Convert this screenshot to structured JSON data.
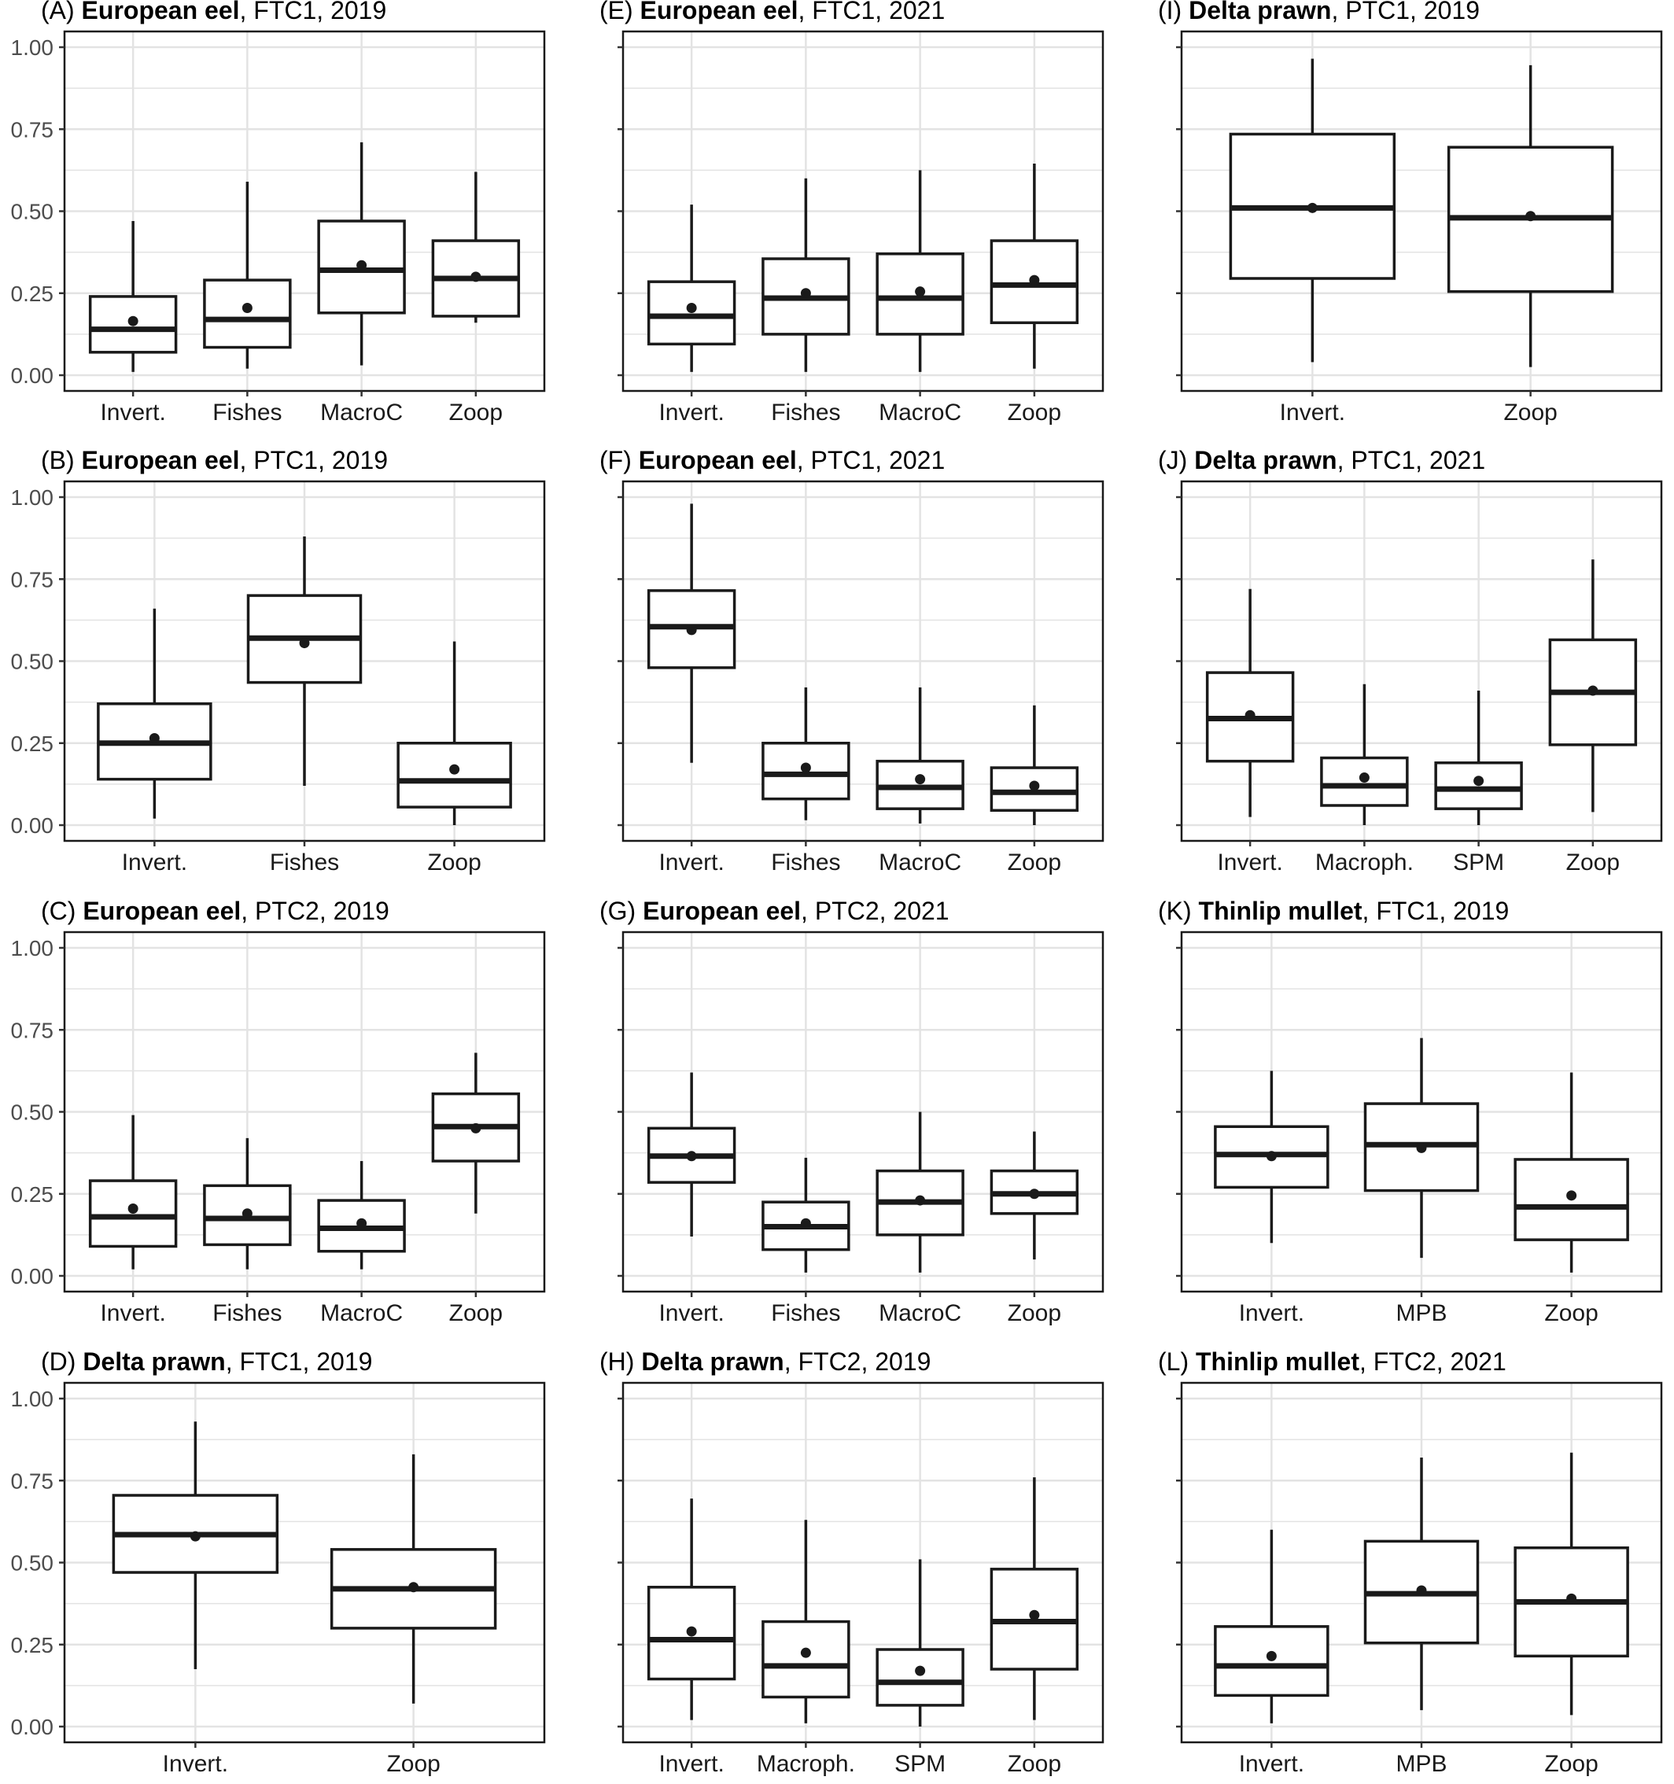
{
  "figure": {
    "y_ticks": [
      0,
      0.25,
      0.5,
      0.75,
      1.0
    ],
    "y_tick_labels": [
      "0.00",
      "0.25",
      "0.50",
      "0.75",
      "1.00"
    ],
    "colors": {
      "box": "#1a1a1a",
      "grid": "#e3e3e3",
      "background": "#ffffff"
    }
  },
  "chart_data": [
    {
      "id": "A",
      "type": "box",
      "prefix": "(A) ",
      "species": "European eel",
      "suffix": ", FTC1, 2019",
      "ylim": [
        0,
        1
      ],
      "show_y_labels": true,
      "categories": [
        "Invert.",
        "Fishes",
        "MacroC",
        "Zoop"
      ],
      "boxes": [
        {
          "min": 0.01,
          "q1": 0.07,
          "median": 0.14,
          "q3": 0.24,
          "max": 0.47,
          "mean": 0.165
        },
        {
          "min": 0.02,
          "q1": 0.085,
          "median": 0.17,
          "q3": 0.29,
          "max": 0.59,
          "mean": 0.205
        },
        {
          "min": 0.03,
          "q1": 0.19,
          "median": 0.32,
          "q3": 0.47,
          "max": 0.71,
          "mean": 0.335
        },
        {
          "min": 0.16,
          "q1": 0.18,
          "median": 0.295,
          "q3": 0.41,
          "max": 0.62,
          "mean": 0.3
        }
      ]
    },
    {
      "id": "E",
      "type": "box",
      "prefix": "(E) ",
      "species": "European eel",
      "suffix": ", FTC1, 2021",
      "ylim": [
        0,
        1
      ],
      "show_y_labels": false,
      "categories": [
        "Invert.",
        "Fishes",
        "MacroC",
        "Zoop"
      ],
      "boxes": [
        {
          "min": 0.01,
          "q1": 0.095,
          "median": 0.18,
          "q3": 0.285,
          "max": 0.52,
          "mean": 0.205
        },
        {
          "min": 0.01,
          "q1": 0.125,
          "median": 0.235,
          "q3": 0.355,
          "max": 0.6,
          "mean": 0.25
        },
        {
          "min": 0.01,
          "q1": 0.125,
          "median": 0.235,
          "q3": 0.37,
          "max": 0.625,
          "mean": 0.255
        },
        {
          "min": 0.02,
          "q1": 0.16,
          "median": 0.275,
          "q3": 0.41,
          "max": 0.645,
          "mean": 0.29
        }
      ]
    },
    {
      "id": "I",
      "type": "box",
      "prefix": "(I) ",
      "species": "Delta prawn",
      "suffix": ", PTC1, 2019",
      "ylim": [
        0,
        1
      ],
      "show_y_labels": false,
      "categories": [
        "Invert.",
        "Zoop"
      ],
      "boxes": [
        {
          "min": 0.04,
          "q1": 0.295,
          "median": 0.51,
          "q3": 0.735,
          "max": 0.965,
          "mean": 0.51
        },
        {
          "min": 0.025,
          "q1": 0.255,
          "median": 0.48,
          "q3": 0.695,
          "max": 0.945,
          "mean": 0.485
        }
      ]
    },
    {
      "id": "B",
      "type": "box",
      "prefix": "(B) ",
      "species": "European eel",
      "suffix": ", PTC1, 2019",
      "ylim": [
        0,
        1
      ],
      "show_y_labels": true,
      "categories": [
        "Invert.",
        "Fishes",
        "Zoop"
      ],
      "boxes": [
        {
          "min": 0.02,
          "q1": 0.14,
          "median": 0.25,
          "q3": 0.37,
          "max": 0.66,
          "mean": 0.265
        },
        {
          "min": 0.12,
          "q1": 0.435,
          "median": 0.57,
          "q3": 0.7,
          "max": 0.88,
          "mean": 0.555
        },
        {
          "min": 0.0,
          "q1": 0.055,
          "median": 0.135,
          "q3": 0.25,
          "max": 0.56,
          "mean": 0.17
        }
      ]
    },
    {
      "id": "F",
      "type": "box",
      "prefix": "(F) ",
      "species": "European eel",
      "suffix": ", PTC1, 2021",
      "ylim": [
        0,
        1
      ],
      "show_y_labels": false,
      "categories": [
        "Invert.",
        "Fishes",
        "MacroC",
        "Zoop"
      ],
      "boxes": [
        {
          "min": 0.19,
          "q1": 0.48,
          "median": 0.605,
          "q3": 0.715,
          "max": 0.98,
          "mean": 0.595
        },
        {
          "min": 0.015,
          "q1": 0.08,
          "median": 0.155,
          "q3": 0.25,
          "max": 0.42,
          "mean": 0.175
        },
        {
          "min": 0.005,
          "q1": 0.05,
          "median": 0.115,
          "q3": 0.195,
          "max": 0.42,
          "mean": 0.14
        },
        {
          "min": 0.0,
          "q1": 0.045,
          "median": 0.1,
          "q3": 0.175,
          "max": 0.365,
          "mean": 0.12
        }
      ]
    },
    {
      "id": "J",
      "type": "box",
      "prefix": "(J) ",
      "species": "Delta prawn",
      "suffix": ", PTC1, 2021",
      "ylim": [
        0,
        1
      ],
      "show_y_labels": false,
      "categories": [
        "Invert.",
        "Macroph.",
        "SPM",
        "Zoop"
      ],
      "boxes": [
        {
          "min": 0.025,
          "q1": 0.195,
          "median": 0.325,
          "q3": 0.465,
          "max": 0.72,
          "mean": 0.335
        },
        {
          "min": 0.0,
          "q1": 0.06,
          "median": 0.12,
          "q3": 0.205,
          "max": 0.43,
          "mean": 0.145
        },
        {
          "min": 0.0,
          "q1": 0.05,
          "median": 0.11,
          "q3": 0.19,
          "max": 0.41,
          "mean": 0.135
        },
        {
          "min": 0.04,
          "q1": 0.245,
          "median": 0.405,
          "q3": 0.565,
          "max": 0.81,
          "mean": 0.41
        }
      ]
    },
    {
      "id": "C",
      "type": "box",
      "prefix": "(C) ",
      "species": "European eel",
      "suffix": ", PTC2, 2019",
      "ylim": [
        0,
        1
      ],
      "show_y_labels": true,
      "categories": [
        "Invert.",
        "Fishes",
        "MacroC",
        "Zoop"
      ],
      "boxes": [
        {
          "min": 0.02,
          "q1": 0.09,
          "median": 0.18,
          "q3": 0.29,
          "max": 0.49,
          "mean": 0.205
        },
        {
          "min": 0.02,
          "q1": 0.095,
          "median": 0.175,
          "q3": 0.275,
          "max": 0.42,
          "mean": 0.19
        },
        {
          "min": 0.02,
          "q1": 0.075,
          "median": 0.145,
          "q3": 0.23,
          "max": 0.35,
          "mean": 0.16
        },
        {
          "min": 0.19,
          "q1": 0.35,
          "median": 0.455,
          "q3": 0.555,
          "max": 0.68,
          "mean": 0.45
        }
      ]
    },
    {
      "id": "G",
      "type": "box",
      "prefix": "(G) ",
      "species": "European eel",
      "suffix": ", PTC2, 2021",
      "ylim": [
        0,
        1
      ],
      "show_y_labels": false,
      "categories": [
        "Invert.",
        "Fishes",
        "MacroC",
        "Zoop"
      ],
      "boxes": [
        {
          "min": 0.12,
          "q1": 0.285,
          "median": 0.365,
          "q3": 0.45,
          "max": 0.62,
          "mean": 0.365
        },
        {
          "min": 0.01,
          "q1": 0.08,
          "median": 0.15,
          "q3": 0.225,
          "max": 0.36,
          "mean": 0.16
        },
        {
          "min": 0.01,
          "q1": 0.125,
          "median": 0.225,
          "q3": 0.32,
          "max": 0.5,
          "mean": 0.23
        },
        {
          "min": 0.05,
          "q1": 0.19,
          "median": 0.25,
          "q3": 0.32,
          "max": 0.44,
          "mean": 0.25
        }
      ]
    },
    {
      "id": "K",
      "type": "box",
      "prefix": "(K) ",
      "species": "Thinlip mullet",
      "suffix": ", FTC1, 2019",
      "ylim": [
        0,
        1
      ],
      "show_y_labels": false,
      "categories": [
        "Invert.",
        "MPB",
        "Zoop"
      ],
      "boxes": [
        {
          "min": 0.1,
          "q1": 0.27,
          "median": 0.37,
          "q3": 0.455,
          "max": 0.625,
          "mean": 0.365
        },
        {
          "min": 0.055,
          "q1": 0.26,
          "median": 0.4,
          "q3": 0.525,
          "max": 0.725,
          "mean": 0.39
        },
        {
          "min": 0.01,
          "q1": 0.11,
          "median": 0.21,
          "q3": 0.355,
          "max": 0.62,
          "mean": 0.245
        }
      ]
    },
    {
      "id": "D",
      "type": "box",
      "prefix": "(D) ",
      "species": "Delta prawn",
      "suffix": ", FTC1, 2019",
      "ylim": [
        0,
        1
      ],
      "show_y_labels": true,
      "categories": [
        "Invert.",
        "Zoop"
      ],
      "boxes": [
        {
          "min": 0.175,
          "q1": 0.47,
          "median": 0.585,
          "q3": 0.705,
          "max": 0.93,
          "mean": 0.58
        },
        {
          "min": 0.07,
          "q1": 0.3,
          "median": 0.42,
          "q3": 0.54,
          "max": 0.83,
          "mean": 0.425
        }
      ]
    },
    {
      "id": "H",
      "type": "box",
      "prefix": "(H) ",
      "species": "Delta prawn",
      "suffix": ", FTC2, 2019",
      "ylim": [
        0,
        1
      ],
      "show_y_labels": false,
      "categories": [
        "Invert.",
        "Macroph.",
        "SPM",
        "Zoop"
      ],
      "boxes": [
        {
          "min": 0.02,
          "q1": 0.145,
          "median": 0.265,
          "q3": 0.425,
          "max": 0.695,
          "mean": 0.29
        },
        {
          "min": 0.01,
          "q1": 0.09,
          "median": 0.185,
          "q3": 0.32,
          "max": 0.63,
          "mean": 0.225
        },
        {
          "min": 0.0,
          "q1": 0.065,
          "median": 0.135,
          "q3": 0.235,
          "max": 0.51,
          "mean": 0.17
        },
        {
          "min": 0.02,
          "q1": 0.175,
          "median": 0.32,
          "q3": 0.48,
          "max": 0.76,
          "mean": 0.34
        }
      ]
    },
    {
      "id": "L",
      "type": "box",
      "prefix": "(L) ",
      "species": "Thinlip mullet",
      "suffix": ", FTC2, 2021",
      "ylim": [
        0,
        1
      ],
      "show_y_labels": false,
      "categories": [
        "Invert.",
        "MPB",
        "Zoop"
      ],
      "boxes": [
        {
          "min": 0.01,
          "q1": 0.095,
          "median": 0.185,
          "q3": 0.305,
          "max": 0.6,
          "mean": 0.215
        },
        {
          "min": 0.05,
          "q1": 0.255,
          "median": 0.405,
          "q3": 0.565,
          "max": 0.82,
          "mean": 0.415
        },
        {
          "min": 0.035,
          "q1": 0.215,
          "median": 0.38,
          "q3": 0.545,
          "max": 0.835,
          "mean": 0.39
        }
      ]
    }
  ]
}
